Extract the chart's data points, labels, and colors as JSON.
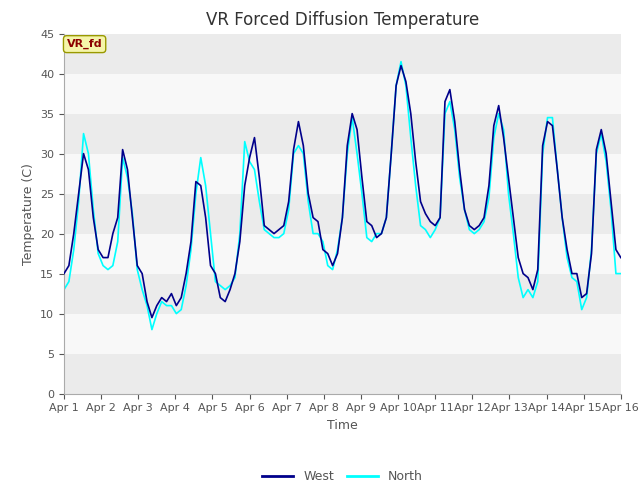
{
  "title": "VR Forced Diffusion Temperature",
  "xlabel": "Time",
  "ylabel": "Temperature (C)",
  "legend_label": "VR_fd",
  "ylim": [
    0,
    45
  ],
  "xtick_labels": [
    "Apr 1",
    "Apr 2",
    "Apr 3",
    "Apr 4",
    "Apr 5",
    "Apr 6",
    "Apr 7",
    "Apr 8",
    "Apr 9",
    "Apr 10",
    "Apr 11",
    "Apr 12",
    "Apr 13",
    "Apr 14",
    "Apr 15",
    "Apr 16"
  ],
  "ytick_values": [
    0,
    5,
    10,
    15,
    20,
    25,
    30,
    35,
    40,
    45
  ],
  "west_color": "#00008B",
  "north_color": "#00FFFF",
  "fig_bg_color": "#FFFFFF",
  "plot_bg_color": "#FFFFFF",
  "title_fontsize": 12,
  "axis_label_fontsize": 9,
  "tick_fontsize": 8,
  "line_width": 1.2,
  "band_colors": [
    "#EBEBEB",
    "#F8F8F8"
  ],
  "west_data": [
    15.0,
    16.0,
    20.0,
    25.0,
    30.0,
    28.0,
    22.0,
    18.0,
    17.0,
    17.0,
    20.0,
    22.0,
    30.5,
    28.0,
    22.0,
    16.0,
    15.0,
    11.5,
    9.5,
    11.0,
    12.0,
    11.5,
    12.5,
    11.0,
    12.0,
    15.0,
    19.0,
    26.5,
    26.0,
    22.0,
    16.0,
    15.0,
    12.0,
    11.5,
    13.0,
    15.0,
    19.0,
    26.0,
    29.5,
    32.0,
    27.0,
    21.0,
    20.5,
    20.0,
    20.5,
    21.0,
    24.0,
    30.5,
    34.0,
    31.0,
    25.0,
    22.0,
    21.5,
    18.0,
    17.5,
    16.0,
    17.5,
    22.0,
    31.0,
    35.0,
    33.0,
    27.0,
    21.5,
    21.0,
    19.5,
    20.0,
    22.0,
    30.0,
    38.5,
    41.0,
    39.0,
    35.0,
    29.0,
    24.0,
    22.5,
    21.5,
    21.0,
    22.0,
    36.5,
    38.0,
    34.0,
    28.0,
    23.0,
    21.0,
    20.5,
    21.0,
    22.0,
    26.0,
    33.5,
    36.0,
    32.0,
    27.0,
    22.0,
    17.0,
    15.0,
    14.5,
    13.0,
    15.5,
    31.0,
    34.0,
    33.5,
    28.0,
    22.0,
    18.0,
    15.0,
    15.0,
    12.0,
    12.5,
    17.5,
    30.5,
    33.0,
    30.0,
    24.0,
    18.0,
    17.0
  ],
  "north_data": [
    13.0,
    14.0,
    18.0,
    24.0,
    32.5,
    30.0,
    23.0,
    17.5,
    16.0,
    15.5,
    16.0,
    19.0,
    29.5,
    27.0,
    22.5,
    15.5,
    13.0,
    11.0,
    8.0,
    10.0,
    11.5,
    11.0,
    11.0,
    10.0,
    10.5,
    13.5,
    18.0,
    25.0,
    29.5,
    26.0,
    20.0,
    14.0,
    13.5,
    13.0,
    13.5,
    14.5,
    20.0,
    31.5,
    29.0,
    28.0,
    24.0,
    20.5,
    20.0,
    19.5,
    19.5,
    20.0,
    23.0,
    30.0,
    31.0,
    30.0,
    24.0,
    20.0,
    20.0,
    19.0,
    16.0,
    15.5,
    18.0,
    22.0,
    30.0,
    34.5,
    30.0,
    25.0,
    19.5,
    19.0,
    20.0,
    20.0,
    22.0,
    30.0,
    38.5,
    41.5,
    38.5,
    32.0,
    26.0,
    21.0,
    20.5,
    19.5,
    20.5,
    22.0,
    35.0,
    36.5,
    33.0,
    27.0,
    23.0,
    20.5,
    20.0,
    20.5,
    21.5,
    24.5,
    32.0,
    35.0,
    33.0,
    25.0,
    20.0,
    14.5,
    12.0,
    13.0,
    12.0,
    14.0,
    30.0,
    34.5,
    34.5,
    28.0,
    22.0,
    17.0,
    14.5,
    14.0,
    10.5,
    12.0,
    18.0,
    30.0,
    32.5,
    29.0,
    23.0,
    15.0,
    15.0
  ]
}
